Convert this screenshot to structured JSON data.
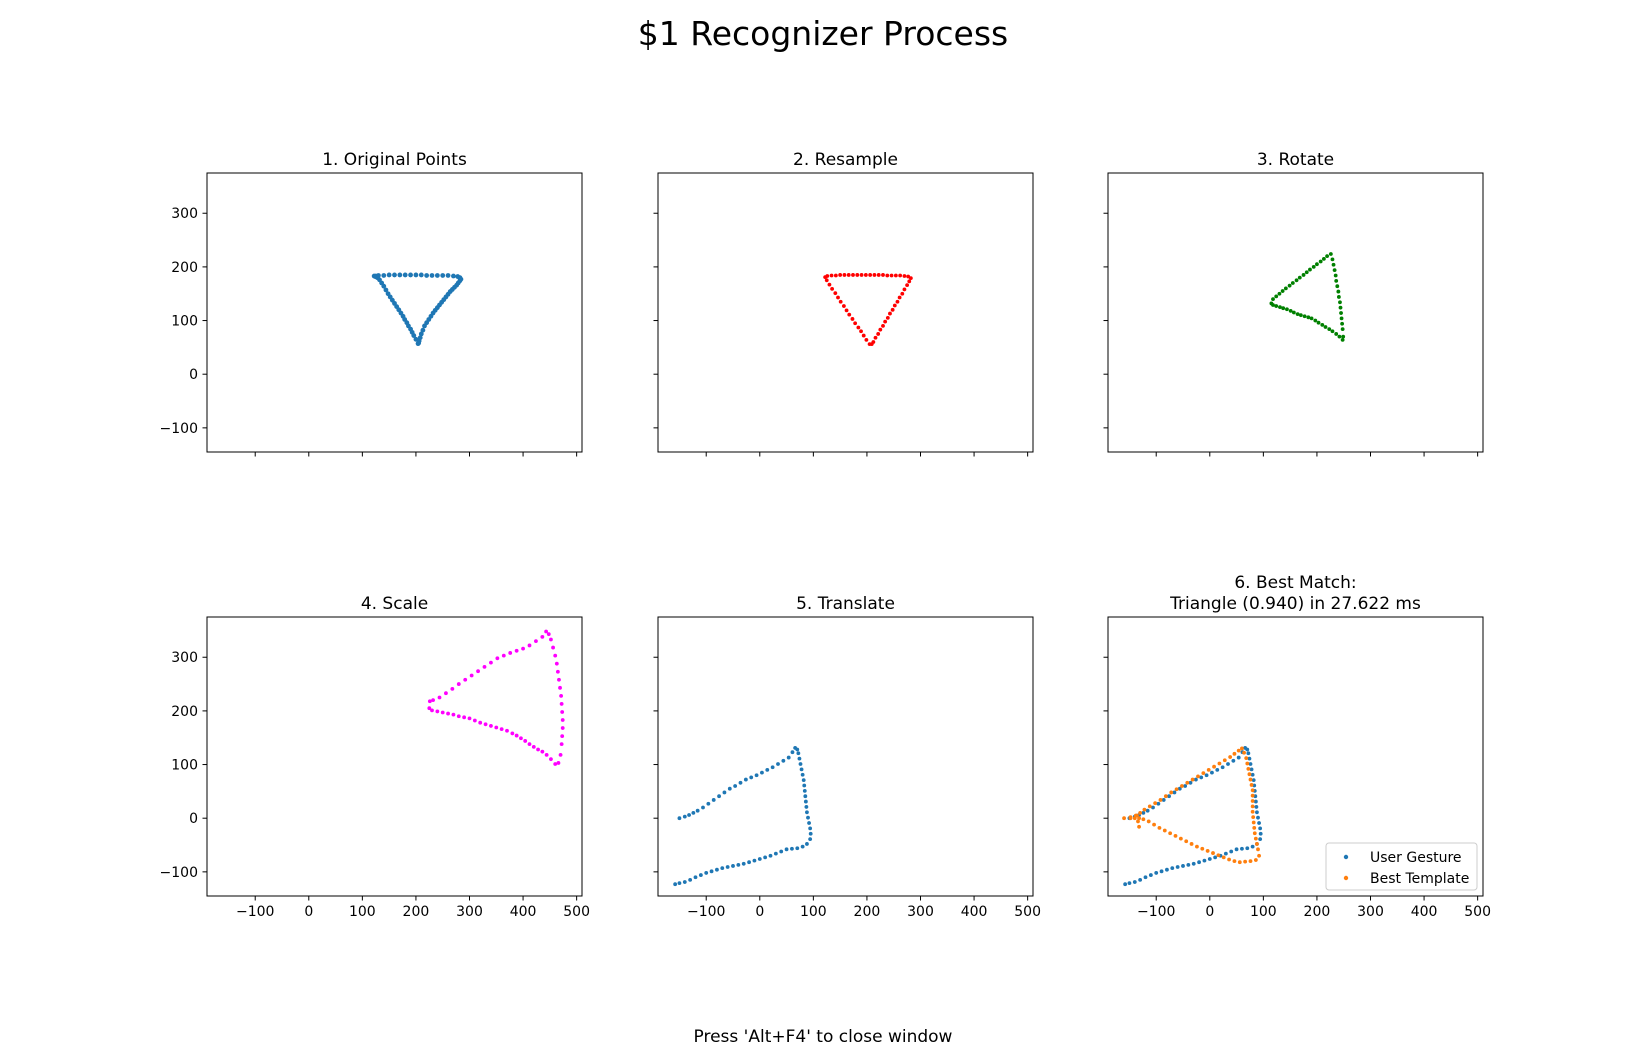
{
  "window": {
    "suptitle": "$1 Recognizer Process",
    "footer": "Press 'Alt+F4' to close window"
  },
  "chart_data": [
    {
      "type": "scatter",
      "title": "1. Original Points",
      "xlim": [
        -190,
        510
      ],
      "ylim": [
        -145,
        375
      ],
      "xticks": [
        -100,
        0,
        100,
        200,
        300,
        400,
        500
      ],
      "yticks": [
        -100,
        0,
        100,
        200,
        300
      ],
      "show_xtick_labels": false,
      "show_ytick_labels": true,
      "series": [
        {
          "color": "#1f77b4",
          "marker_size": "large",
          "x": [
            205,
            200,
            196,
            193,
            190,
            186,
            183,
            179,
            176,
            172,
            168,
            164,
            160,
            156,
            152,
            148,
            144,
            140,
            136,
            132,
            128,
            124,
            122,
            125,
            130,
            140,
            150,
            160,
            170,
            180,
            190,
            200,
            210,
            220,
            230,
            240,
            250,
            260,
            270,
            278,
            282,
            284,
            282,
            279,
            276,
            272,
            268,
            264,
            260,
            256,
            252,
            248,
            244,
            240,
            236,
            232,
            228,
            224,
            220,
            216,
            213,
            210,
            208,
            206,
            204
          ],
          "y": [
            58,
            65,
            72,
            78,
            84,
            90,
            96,
            102,
            108,
            114,
            120,
            126,
            132,
            138,
            144,
            150,
            157,
            164,
            170,
            176,
            180,
            182,
            183,
            183,
            184,
            184,
            185,
            185,
            185,
            185,
            185,
            185,
            185,
            184,
            184,
            184,
            184,
            184,
            183,
            182,
            180,
            177,
            174,
            170,
            166,
            162,
            158,
            154,
            149,
            144,
            139,
            134,
            129,
            124,
            119,
            114,
            108,
            102,
            96,
            90,
            82,
            75,
            68,
            62,
            57
          ]
        }
      ]
    },
    {
      "type": "scatter",
      "title": "2. Resample",
      "xlim": [
        -190,
        510
      ],
      "ylim": [
        -145,
        375
      ],
      "xticks": [
        -100,
        0,
        100,
        200,
        300,
        400,
        500
      ],
      "yticks": [
        -100,
        0,
        100,
        200,
        300
      ],
      "show_xtick_labels": false,
      "show_ytick_labels": false,
      "series": [
        {
          "color": "#ff0000",
          "marker_size": "normal",
          "x": [
            205,
            199,
            194,
            189,
            184,
            178,
            173,
            167,
            162,
            157,
            151,
            146,
            141,
            135,
            130,
            125,
            122,
            126,
            134,
            142,
            150,
            158,
            166,
            174,
            182,
            190,
            198,
            206,
            214,
            222,
            230,
            238,
            246,
            254,
            262,
            270,
            277,
            282,
            279,
            275,
            270,
            266,
            261,
            257,
            252,
            248,
            243,
            239,
            234,
            230,
            225,
            221,
            216,
            212,
            209
          ],
          "y": [
            56,
            64,
            72,
            80,
            87,
            95,
            103,
            111,
            119,
            127,
            135,
            143,
            151,
            159,
            167,
            175,
            181,
            183,
            184,
            184,
            185,
            185,
            185,
            185,
            185,
            185,
            185,
            185,
            185,
            185,
            185,
            184,
            184,
            184,
            184,
            183,
            182,
            179,
            173,
            166,
            158,
            150,
            143,
            135,
            128,
            120,
            113,
            105,
            98,
            90,
            83,
            75,
            68,
            60,
            56
          ]
        }
      ]
    },
    {
      "type": "scatter",
      "title": "3. Rotate",
      "xlim": [
        -190,
        510
      ],
      "ylim": [
        -145,
        375
      ],
      "xticks": [
        -100,
        0,
        100,
        200,
        300,
        400,
        500
      ],
      "yticks": [
        -100,
        0,
        100,
        200,
        300
      ],
      "show_xtick_labels": false,
      "show_ytick_labels": false,
      "series": [
        {
          "color": "#008000",
          "marker_size": "normal",
          "x": [
            118,
            124,
            130,
            136,
            142,
            149,
            155,
            162,
            168,
            175,
            181,
            187,
            194,
            200,
            207,
            213,
            219,
            226,
            229,
            231,
            233,
            235,
            236,
            238,
            240,
            241,
            243,
            244,
            245,
            246,
            247,
            248,
            249,
            248,
            242,
            236,
            229,
            223,
            216,
            210,
            203,
            197,
            190,
            184,
            177,
            170,
            164,
            157,
            151,
            144,
            137,
            131,
            124,
            118,
            115
          ],
          "y": [
            140,
            145,
            150,
            155,
            160,
            165,
            170,
            175,
            180,
            185,
            190,
            195,
            200,
            205,
            210,
            215,
            220,
            224,
            214,
            204,
            194,
            184,
            174,
            164,
            154,
            144,
            134,
            124,
            114,
            104,
            94,
            84,
            70,
            64,
            70,
            75,
            80,
            84,
            88,
            92,
            96,
            100,
            104,
            106,
            108,
            110,
            112,
            115,
            118,
            121,
            123,
            125,
            127,
            129,
            132
          ]
        }
      ]
    },
    {
      "type": "scatter",
      "title": "4. Scale",
      "xlim": [
        -190,
        510
      ],
      "ylim": [
        -145,
        375
      ],
      "xticks": [
        -100,
        0,
        100,
        200,
        300,
        400,
        500
      ],
      "yticks": [
        -100,
        0,
        100,
        200,
        300
      ],
      "show_xtick_labels": true,
      "show_ytick_labels": true,
      "series": [
        {
          "color": "#ff00ff",
          "marker_size": "normal",
          "x": [
            226,
            232,
            244,
            256,
            268,
            280,
            292,
            304,
            316,
            328,
            340,
            352,
            364,
            376,
            388,
            400,
            412,
            424,
            436,
            443,
            448,
            452,
            456,
            460,
            463,
            465,
            467,
            469,
            471,
            472,
            473,
            474,
            474,
            473,
            472,
            470,
            466,
            460,
            452,
            444,
            436,
            428,
            420,
            412,
            404,
            396,
            388,
            380,
            370,
            360,
            350,
            340,
            330,
            320,
            310,
            300,
            290,
            280,
            270,
            260,
            250,
            240,
            230,
            225
          ],
          "y": [
            218,
            220,
            225,
            233,
            241,
            250,
            258,
            266,
            274,
            282,
            290,
            298,
            303,
            308,
            312,
            316,
            322,
            330,
            338,
            348,
            343,
            333,
            318,
            303,
            288,
            273,
            258,
            243,
            228,
            213,
            198,
            183,
            168,
            153,
            138,
            118,
            103,
            101,
            110,
            118,
            124,
            128,
            133,
            138,
            144,
            149,
            154,
            158,
            163,
            166,
            169,
            172,
            175,
            178,
            182,
            186,
            188,
            190,
            193,
            195,
            197,
            199,
            201,
            205
          ]
        }
      ]
    },
    {
      "type": "scatter",
      "title": "5. Translate",
      "xlim": [
        -190,
        510
      ],
      "ylim": [
        -145,
        375
      ],
      "xticks": [
        -100,
        0,
        100,
        200,
        300,
        400,
        500
      ],
      "yticks": [
        -100,
        0,
        100,
        200,
        300
      ],
      "show_xtick_labels": true,
      "show_ytick_labels": false,
      "series": [
        {
          "color": "#1f77b4",
          "marker_size": "normal",
          "x": [
            -150,
            -140,
            -132,
            -124,
            -116,
            -106,
            -96,
            -86,
            -76,
            -66,
            -56,
            -46,
            -36,
            -26,
            -16,
            -6,
            4,
            14,
            24,
            34,
            44,
            54,
            61,
            66,
            70,
            72,
            74,
            76,
            78,
            80,
            82,
            83,
            84,
            85,
            86,
            87,
            88,
            90,
            92,
            94,
            95,
            94,
            88,
            80,
            70,
            60,
            50,
            40,
            30,
            20,
            10,
            0,
            -10,
            -20,
            -30,
            -40,
            -50,
            -60,
            -70,
            -80,
            -90,
            -100,
            -110,
            -120,
            -130,
            -140,
            -150,
            -158
          ],
          "y": [
            0,
            3,
            6,
            10,
            14,
            20,
            27,
            34,
            41,
            48,
            55,
            60,
            66,
            72,
            76,
            80,
            85,
            90,
            95,
            101,
            107,
            113,
            123,
            131,
            128,
            121,
            111,
            101,
            91,
            81,
            71,
            61,
            51,
            41,
            31,
            21,
            11,
            1,
            -9,
            -19,
            -29,
            -39,
            -48,
            -53,
            -56,
            -57,
            -58,
            -62,
            -66,
            -70,
            -73,
            -76,
            -79,
            -82,
            -85,
            -87,
            -89,
            -91,
            -93,
            -96,
            -99,
            -102,
            -106,
            -110,
            -115,
            -119,
            -121,
            -123
          ]
        }
      ]
    },
    {
      "type": "scatter",
      "title": "6. Best Match:\nTriangle (0.940) in 27.622 ms",
      "xlim": [
        -190,
        510
      ],
      "ylim": [
        -145,
        375
      ],
      "xticks": [
        -100,
        0,
        100,
        200,
        300,
        400,
        500
      ],
      "yticks": [
        -100,
        0,
        100,
        200,
        300
      ],
      "show_xtick_labels": true,
      "show_ytick_labels": false,
      "legend": {
        "placement": "lower right",
        "entries": [
          "User Gesture",
          "Best Template"
        ]
      },
      "series": [
        {
          "name": "User Gesture",
          "color": "#1f77b4",
          "marker_size": "normal",
          "x": [
            -150,
            -140,
            -132,
            -124,
            -116,
            -106,
            -96,
            -86,
            -76,
            -66,
            -56,
            -46,
            -36,
            -26,
            -16,
            -6,
            4,
            14,
            24,
            34,
            44,
            54,
            61,
            66,
            70,
            72,
            74,
            76,
            78,
            80,
            82,
            83,
            84,
            85,
            86,
            87,
            88,
            90,
            92,
            94,
            95,
            94,
            88,
            80,
            70,
            60,
            50,
            40,
            30,
            20,
            10,
            0,
            -10,
            -20,
            -30,
            -40,
            -50,
            -60,
            -70,
            -80,
            -90,
            -100,
            -110,
            -120,
            -130,
            -140,
            -150,
            -158
          ],
          "y": [
            0,
            3,
            6,
            10,
            14,
            20,
            27,
            34,
            41,
            48,
            55,
            60,
            66,
            72,
            76,
            80,
            85,
            90,
            95,
            101,
            107,
            113,
            123,
            131,
            128,
            121,
            111,
            101,
            91,
            81,
            71,
            61,
            51,
            41,
            31,
            21,
            11,
            1,
            -9,
            -19,
            -29,
            -39,
            -48,
            -53,
            -56,
            -57,
            -58,
            -62,
            -66,
            -70,
            -73,
            -76,
            -79,
            -82,
            -85,
            -87,
            -89,
            -91,
            -93,
            -96,
            -99,
            -102,
            -106,
            -110,
            -115,
            -119,
            -121,
            -123
          ]
        },
        {
          "name": "Best Template",
          "color": "#ff7f0e",
          "marker_size": "normal",
          "x": [
            -160,
            -148,
            -138,
            -130,
            -122,
            -112,
            -102,
            -92,
            -82,
            -72,
            -62,
            -52,
            -42,
            -32,
            -22,
            -12,
            -2,
            8,
            18,
            28,
            38,
            46,
            54,
            60,
            64,
            68,
            70,
            72,
            74,
            76,
            78,
            80,
            80,
            80,
            80,
            80,
            81,
            82,
            83,
            84,
            86,
            88,
            90,
            92,
            86,
            76,
            66,
            56,
            46,
            36,
            26,
            16,
            6,
            -4,
            -14,
            -24,
            -34,
            -44,
            -54,
            -64,
            -74,
            -84,
            -94,
            -104,
            -114,
            -124,
            -132,
            -136,
            -134,
            -132,
            -140,
            -148
          ],
          "y": [
            0,
            2,
            5,
            10,
            16,
            22,
            28,
            34,
            41,
            48,
            54,
            60,
            66,
            72,
            78,
            84,
            90,
            96,
            102,
            108,
            114,
            120,
            126,
            130,
            122,
            112,
            102,
            92,
            82,
            72,
            62,
            52,
            42,
            32,
            22,
            12,
            2,
            -8,
            -18,
            -28,
            -38,
            -48,
            -58,
            -70,
            -78,
            -80,
            -81,
            -82,
            -80,
            -77,
            -73,
            -69,
            -65,
            -61,
            -57,
            -53,
            -48,
            -43,
            -38,
            -33,
            -28,
            -23,
            -18,
            -12,
            -6,
            -2,
            0,
            5,
            -6,
            -16,
            0,
            0
          ]
        }
      ]
    }
  ]
}
